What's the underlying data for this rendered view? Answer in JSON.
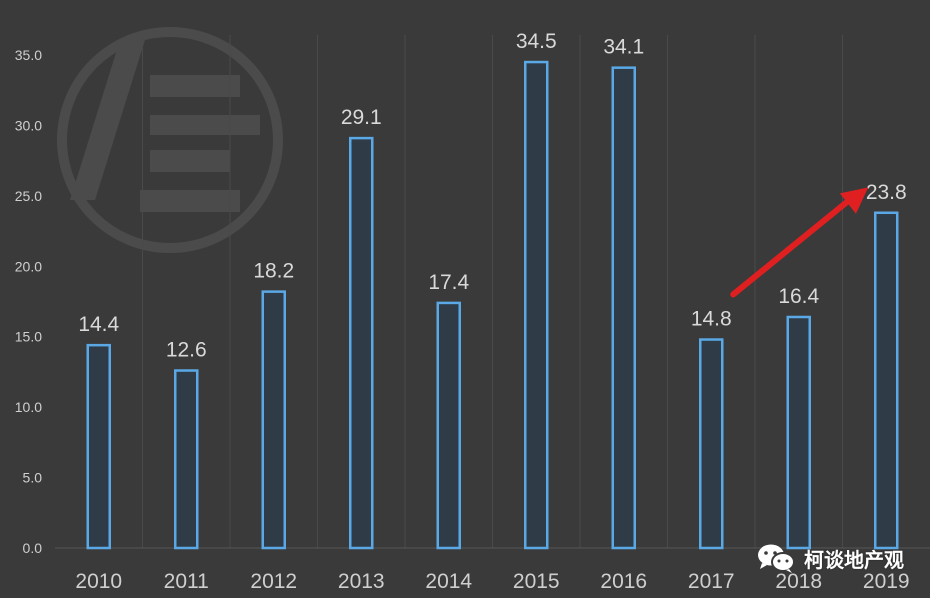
{
  "chart_data": {
    "type": "bar",
    "categories": [
      "2010",
      "2011",
      "2012",
      "2013",
      "2014",
      "2015",
      "2016",
      "2017",
      "2018",
      "2019"
    ],
    "values": [
      14.4,
      12.6,
      18.2,
      29.1,
      17.4,
      34.5,
      34.1,
      14.8,
      16.4,
      23.8
    ],
    "data_labels": [
      "14.4",
      "12.6",
      "18.2",
      "29.1",
      "17.4",
      "34.5",
      "34.1",
      "14.8",
      "16.4",
      "23.8"
    ],
    "y_ticks": [
      "0.0",
      "5.0",
      "10.0",
      "15.0",
      "20.0",
      "25.0",
      "30.0",
      "35.0"
    ],
    "ylim": [
      0,
      35
    ],
    "title": "",
    "xlabel": "",
    "ylabel": "",
    "grid": "vertical separators",
    "legend": "none",
    "annotation": "red arrow pointing up-right from 2017 toward 2019 bar",
    "colors": {
      "background": "#3a3a3a",
      "bar_stroke": "#5aa9e6",
      "bar_fill": "#2f3c48",
      "text": "#d9d9d9",
      "axis_text": "#cfcfcf",
      "arrow": "#e02020"
    }
  },
  "watermark": {
    "icon": "wechat-icon",
    "label": "柯谈地产观",
    "logo": "faint circular logo watermark"
  }
}
